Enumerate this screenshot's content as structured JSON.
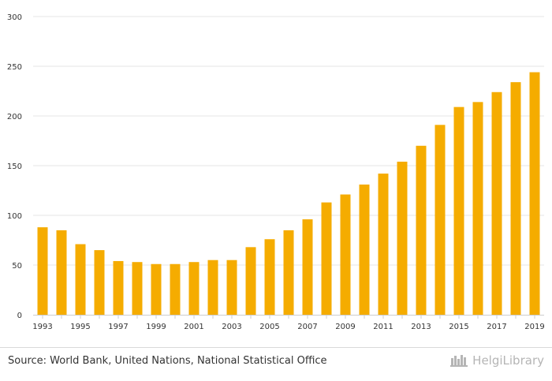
{
  "chart_data": {
    "type": "bar",
    "title": "",
    "xlabel": "",
    "ylabel": "",
    "ylim": [
      0,
      300
    ],
    "yticks": [
      0,
      50,
      100,
      150,
      200,
      250,
      300
    ],
    "grid": true,
    "categories": [
      "1993",
      "1994",
      "1995",
      "1996",
      "1997",
      "1998",
      "1999",
      "2000",
      "2001",
      "2002",
      "2003",
      "2004",
      "2005",
      "2006",
      "2007",
      "2008",
      "2009",
      "2010",
      "2011",
      "2012",
      "2013",
      "2014",
      "2015",
      "2016",
      "2017",
      "2018",
      "2019"
    ],
    "x_tick_labels": [
      "1993",
      "1995",
      "1997",
      "1999",
      "2001",
      "2003",
      "2005",
      "2007",
      "2009",
      "2011",
      "2013",
      "2015",
      "2017",
      "2019"
    ],
    "values": [
      88,
      85,
      71,
      65,
      54,
      53,
      51,
      51,
      53,
      55,
      55,
      68,
      76,
      85,
      96,
      113,
      121,
      131,
      142,
      154,
      170,
      191,
      209,
      214,
      224,
      234,
      244
    ],
    "color": "#f5ac00"
  },
  "footer": {
    "source": "Source: World Bank, United Nations, National Statistical Office",
    "brand": "HelgiLibrary"
  },
  "colors": {
    "grid": "#e6e6e6",
    "axis": "#cccccc",
    "brand": "#b5b5b5"
  }
}
